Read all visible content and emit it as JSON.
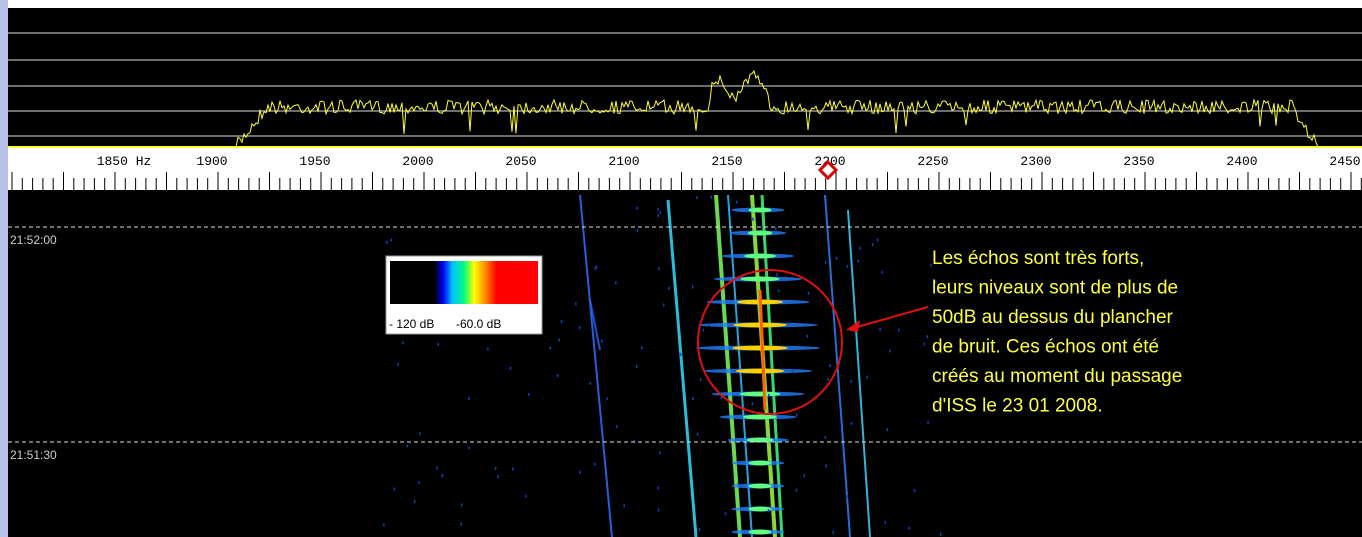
{
  "frequency_axis": {
    "labels": [
      "1850 Hz",
      "1900",
      "1950",
      "2000",
      "2050",
      "2100",
      "2150",
      "2200",
      "2250",
      "2300",
      "2350",
      "2400",
      "2450"
    ]
  },
  "time_labels": [
    "21:52:00",
    "21:51:30"
  ],
  "color_scale": {
    "labels": [
      "- 120 dB",
      "-60.0 dB"
    ]
  },
  "annotation": {
    "lines": [
      "Les échos sont très forts,",
      "leurs niveaux sont de plus de",
      "50dB au dessus du plancher",
      "de bruit. Ces échos ont été",
      "créés au moment du passage",
      "d'ISS le 23 01 2008."
    ]
  }
}
